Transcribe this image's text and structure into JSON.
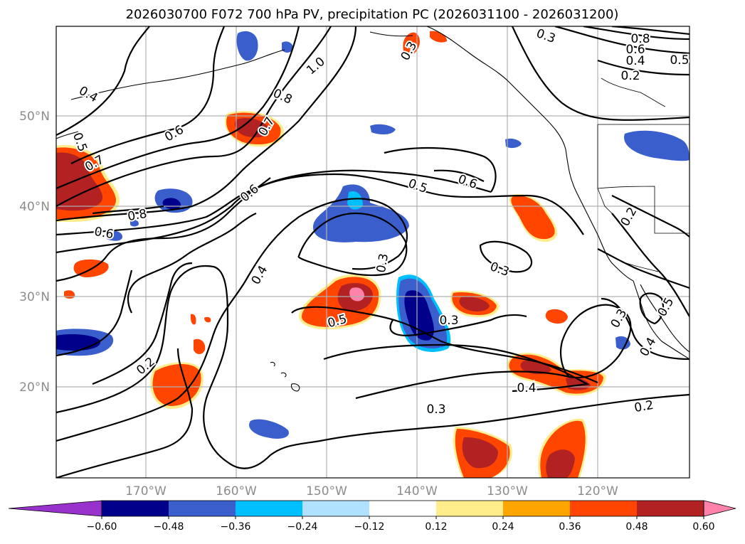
{
  "title": "2026030700 F072 700 hPa PV, precipitation PC (2026031100 - 2026031200)",
  "map": {
    "lat_labels": [
      "50°N",
      "40°N",
      "30°N",
      "20°N"
    ],
    "lon_labels": [
      "170°W",
      "160°W",
      "150°W",
      "140°W",
      "130°W",
      "120°W"
    ]
  },
  "colorbar": {
    "colors": [
      "#9932CC",
      "#00008B",
      "#3A5FCD",
      "#00BFFF",
      "#B0E2FF",
      "#FFFFFF",
      "#FFEC8B",
      "#FFA500",
      "#FF4500",
      "#B22222",
      "#FF82AB"
    ],
    "labels": [
      "−0.60",
      "−0.48",
      "−0.36",
      "−0.24",
      "−0.12",
      "0.12",
      "0.24",
      "0.36",
      "0.48",
      "0.60"
    ]
  },
  "contour_labels": [
    {
      "text": "1.0"
    },
    {
      "text": "0.8"
    },
    {
      "text": "0.7"
    },
    {
      "text": "0.6"
    },
    {
      "text": "0.4"
    },
    {
      "text": "0.3"
    },
    {
      "text": "0.5"
    },
    {
      "text": "0.8"
    },
    {
      "text": "0.6"
    },
    {
      "text": "0.7"
    },
    {
      "text": "0.6"
    },
    {
      "text": "0.5"
    },
    {
      "text": "0.6"
    },
    {
      "text": "0.4"
    },
    {
      "text": "0.3"
    },
    {
      "text": "0.5"
    },
    {
      "text": "0.3"
    },
    {
      "text": "0.3"
    },
    {
      "text": "0.2"
    },
    {
      "text": "0.4"
    },
    {
      "text": "0.3"
    },
    {
      "text": "0.2"
    },
    {
      "text": "0.2"
    },
    {
      "text": "0.4"
    },
    {
      "text": "0.3"
    },
    {
      "text": "0.5"
    },
    {
      "text": "0.3"
    },
    {
      "text": "0.8"
    },
    {
      "text": "0.6"
    },
    {
      "text": "0.4"
    },
    {
      "text": "0.5"
    },
    {
      "text": "0.2"
    }
  ]
}
